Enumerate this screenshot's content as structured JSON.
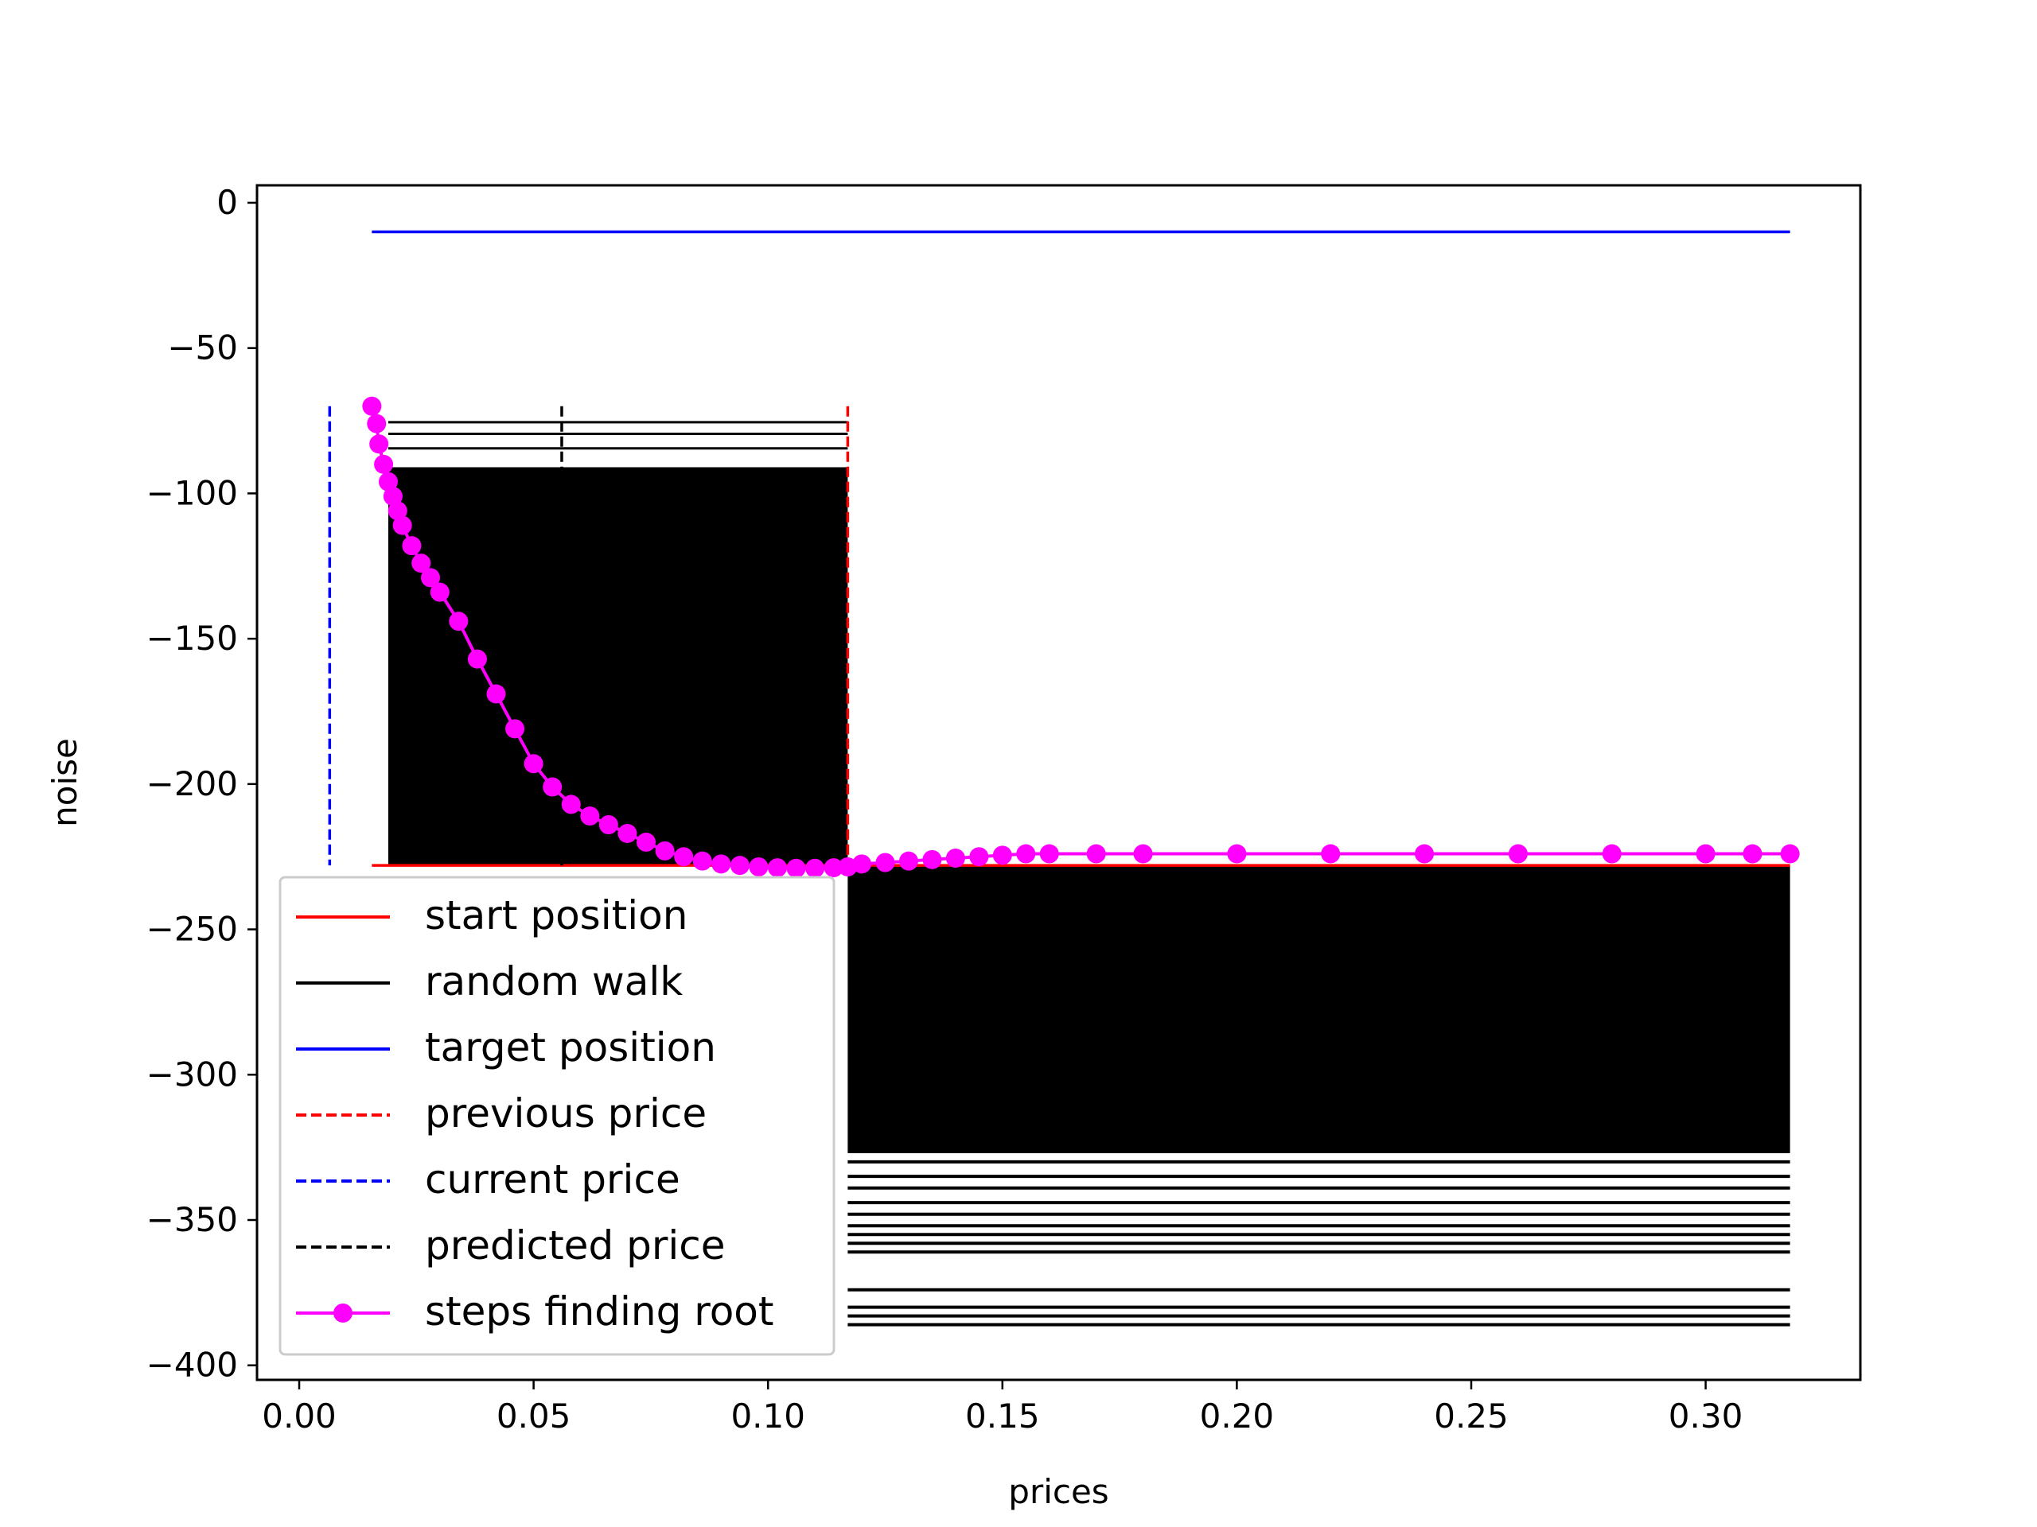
{
  "chart_data": {
    "type": "line",
    "title": "",
    "xlabel": "prices",
    "ylabel": "noise",
    "xlim": [
      -0.009,
      0.333
    ],
    "ylim": [
      -405,
      6
    ],
    "xticks": [
      0.0,
      0.05,
      0.1,
      0.15,
      0.2,
      0.25,
      0.3
    ],
    "xtick_labels": [
      "0.00",
      "0.05",
      "0.10",
      "0.15",
      "0.20",
      "0.25",
      "0.30"
    ],
    "yticks": [
      0,
      -50,
      -100,
      -150,
      -200,
      -250,
      -300,
      -350,
      -400
    ],
    "ytick_labels": [
      "0",
      "−50",
      "−100",
      "−150",
      "−200",
      "−250",
      "−300",
      "−350",
      "−400"
    ],
    "grid": false,
    "legend_position": "lower-left",
    "colors": {
      "start": "#ff0000",
      "walk": "#000000",
      "target": "#0000ff",
      "previous": "#ff0000",
      "current": "#0000ff",
      "predicted": "#000000",
      "steps": "#ff00ff"
    },
    "legend": [
      {
        "label": "start position",
        "style": "solid",
        "color": "#ff0000",
        "marker": false
      },
      {
        "label": "random walk",
        "style": "solid",
        "color": "#000000",
        "marker": false
      },
      {
        "label": "target position",
        "style": "solid",
        "color": "#0000ff",
        "marker": false
      },
      {
        "label": "previous price",
        "style": "dashed",
        "color": "#ff0000",
        "marker": false
      },
      {
        "label": "current price",
        "style": "dashed",
        "color": "#0000ff",
        "marker": false
      },
      {
        "label": "predicted price",
        "style": "dashed",
        "color": "#000000",
        "marker": false
      },
      {
        "label": "steps finding root",
        "style": "solid",
        "color": "#ff00ff",
        "marker": true
      }
    ],
    "start_position": {
      "x": [
        0.0155,
        0.318
      ],
      "y": -228
    },
    "target_position": {
      "x": [
        0.0155,
        0.318
      ],
      "y": -10
    },
    "previous_price": {
      "x": 0.117,
      "y": [
        -70,
        -228
      ]
    },
    "current_price": {
      "x": 0.0065,
      "y": [
        -70,
        -228
      ]
    },
    "predicted_price": {
      "x": 0.056,
      "y": [
        -70,
        -228
      ]
    },
    "random_walk": {
      "upper_band": {
        "x": [
          0.019,
          0.117
        ],
        "y_top": -91,
        "y_bottom": -228
      },
      "upper_lines": [
        -75.5,
        -79.5,
        -84.5
      ],
      "lower_band": {
        "x": [
          0.117,
          0.318
        ],
        "y_top": -228,
        "y_bottom": -327
      },
      "lower_lines": [
        -330,
        -335,
        -339,
        -344,
        -348,
        -352,
        -355,
        -358,
        -361,
        -374,
        -380,
        -383,
        -386
      ]
    },
    "steps_finding_root": {
      "x": [
        0.0155,
        0.0165,
        0.017,
        0.018,
        0.019,
        0.02,
        0.021,
        0.022,
        0.024,
        0.026,
        0.028,
        0.03,
        0.034,
        0.038,
        0.042,
        0.046,
        0.05,
        0.054,
        0.058,
        0.062,
        0.066,
        0.07,
        0.074,
        0.078,
        0.082,
        0.086,
        0.09,
        0.094,
        0.098,
        0.102,
        0.106,
        0.11,
        0.114,
        0.117,
        0.12,
        0.125,
        0.13,
        0.135,
        0.14,
        0.145,
        0.15,
        0.155,
        0.16,
        0.17,
        0.18,
        0.2,
        0.22,
        0.24,
        0.26,
        0.28,
        0.3,
        0.31,
        0.318
      ],
      "y": [
        -70,
        -76,
        -83,
        -90,
        -96,
        -101,
        -106,
        -111,
        -118,
        -124,
        -129,
        -134,
        -144,
        -157,
        -169,
        -181,
        -193,
        -201,
        -207,
        -211,
        -214,
        -217,
        -220,
        -223,
        -225,
        -226.5,
        -227.5,
        -228,
        -228.5,
        -228.8,
        -229,
        -229,
        -228.8,
        -228.5,
        -227.5,
        -227,
        -226.5,
        -226,
        -225.5,
        -225,
        -224.5,
        -224,
        -224,
        -224,
        -224,
        -224,
        -224,
        -224,
        -224,
        -224,
        -224,
        -224,
        -224
      ]
    }
  }
}
